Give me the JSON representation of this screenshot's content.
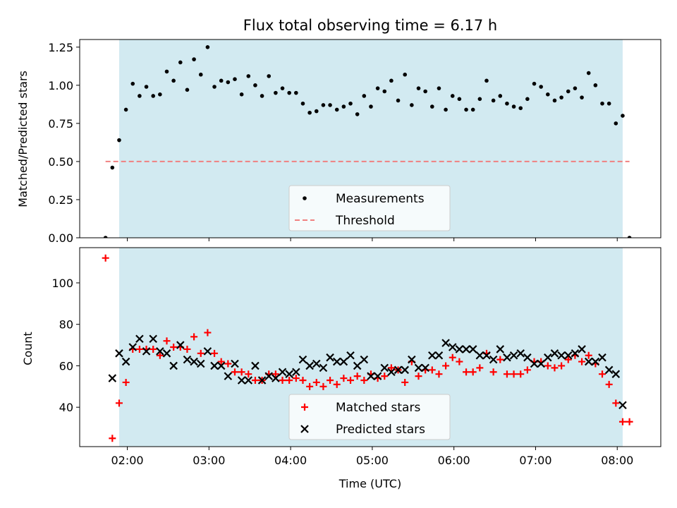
{
  "title": "Flux total observing time = 6.17 h",
  "colors": {
    "shade": "#add8e6",
    "threshold": "#f08080",
    "matched": "#ff0000",
    "predicted": "#000000",
    "measure": "#000000"
  },
  "chart_data": [
    {
      "type": "scatter",
      "ylabel": "Matched/Predicted stars",
      "xlabel": "",
      "xlim": [
        "01:25",
        "08:32"
      ],
      "ylim": [
        0,
        1.3
      ],
      "yticks": [
        "0.00",
        "0.25",
        "0.50",
        "0.75",
        "1.00",
        "1.25"
      ],
      "shaded_x_range": [
        "01:54",
        "08:04"
      ],
      "threshold": {
        "name": "Threshold",
        "y": 0.5,
        "x": [
          "01:44",
          "08:09"
        ]
      },
      "legend": {
        "position": "lower-center",
        "entries": [
          "Measurements",
          "Threshold"
        ]
      },
      "series": [
        {
          "name": "Measurements",
          "x": [
            "01:44",
            "01:49",
            "01:54",
            "01:59",
            "02:04",
            "02:09",
            "02:14",
            "02:19",
            "02:24",
            "02:29",
            "02:34",
            "02:39",
            "02:44",
            "02:49",
            "02:54",
            "02:59",
            "03:04",
            "03:09",
            "03:14",
            "03:19",
            "03:24",
            "03:29",
            "03:34",
            "03:39",
            "03:44",
            "03:49",
            "03:54",
            "03:59",
            "04:04",
            "04:09",
            "04:14",
            "04:19",
            "04:24",
            "04:29",
            "04:34",
            "04:39",
            "04:44",
            "04:49",
            "04:54",
            "04:59",
            "05:04",
            "05:09",
            "05:14",
            "05:19",
            "05:24",
            "05:29",
            "05:34",
            "05:39",
            "05:44",
            "05:49",
            "05:54",
            "05:59",
            "06:04",
            "06:09",
            "06:14",
            "06:19",
            "06:24",
            "06:29",
            "06:34",
            "06:39",
            "06:44",
            "06:49",
            "06:54",
            "06:59",
            "07:04",
            "07:09",
            "07:14",
            "07:19",
            "07:24",
            "07:29",
            "07:34",
            "07:39",
            "07:44",
            "07:49",
            "07:54",
            "07:59",
            "08:04",
            "08:09"
          ],
          "y": [
            0.0,
            0.46,
            0.64,
            0.84,
            1.01,
            0.93,
            0.99,
            0.93,
            0.94,
            1.09,
            1.03,
            1.15,
            0.97,
            1.17,
            1.07,
            1.25,
            0.99,
            1.03,
            1.02,
            1.04,
            0.94,
            1.06,
            1.0,
            0.93,
            1.06,
            0.95,
            0.98,
            0.95,
            0.95,
            0.88,
            0.82,
            0.83,
            0.87,
            0.87,
            0.84,
            0.86,
            0.88,
            0.81,
            0.93,
            0.86,
            0.98,
            0.96,
            1.03,
            0.9,
            1.07,
            0.87,
            0.98,
            0.96,
            0.86,
            0.98,
            0.84,
            0.93,
            0.91,
            0.84,
            0.84,
            0.91,
            1.03,
            0.9,
            0.93,
            0.88,
            0.86,
            0.85,
            0.91,
            1.01,
            0.99,
            0.94,
            0.9,
            0.92,
            0.96,
            0.98,
            0.92,
            1.08,
            1.0,
            0.88,
            0.88,
            0.75,
            0.8,
            0.0
          ]
        }
      ]
    },
    {
      "type": "scatter",
      "ylabel": "Count",
      "xlabel": "Time (UTC)",
      "xlim": [
        "01:25",
        "08:32"
      ],
      "ylim": [
        21,
        117
      ],
      "yticks": [
        "40",
        "60",
        "80",
        "100"
      ],
      "xticks": [
        "02:00",
        "03:00",
        "04:00",
        "05:00",
        "06:00",
        "07:00",
        "08:00"
      ],
      "shaded_x_range": [
        "01:54",
        "08:04"
      ],
      "legend": {
        "position": "lower-center",
        "entries": [
          "Matched stars",
          "Predicted stars"
        ]
      },
      "series": [
        {
          "name": "Matched stars",
          "x": [
            "01:44",
            "01:49",
            "01:54",
            "01:59",
            "02:04",
            "02:09",
            "02:14",
            "02:19",
            "02:24",
            "02:29",
            "02:34",
            "02:39",
            "02:44",
            "02:49",
            "02:54",
            "02:59",
            "03:04",
            "03:09",
            "03:14",
            "03:19",
            "03:24",
            "03:29",
            "03:34",
            "03:39",
            "03:44",
            "03:49",
            "03:54",
            "03:59",
            "04:04",
            "04:09",
            "04:14",
            "04:19",
            "04:24",
            "04:29",
            "04:34",
            "04:39",
            "04:44",
            "04:49",
            "04:54",
            "04:59",
            "05:04",
            "05:09",
            "05:14",
            "05:19",
            "05:24",
            "05:29",
            "05:34",
            "05:39",
            "05:44",
            "05:49",
            "05:54",
            "05:59",
            "06:04",
            "06:09",
            "06:14",
            "06:19",
            "06:24",
            "06:29",
            "06:34",
            "06:39",
            "06:44",
            "06:49",
            "06:54",
            "06:59",
            "07:04",
            "07:09",
            "07:14",
            "07:19",
            "07:24",
            "07:29",
            "07:34",
            "07:39",
            "07:44",
            "07:49",
            "07:54",
            "07:59",
            "08:04",
            "08:09"
          ],
          "y": [
            112,
            25,
            42,
            52,
            68,
            68,
            68,
            68,
            65,
            72,
            69,
            69,
            68,
            74,
            66,
            76,
            66,
            62,
            61,
            57,
            57,
            56,
            53,
            53,
            56,
            56,
            53,
            53,
            54,
            53,
            50,
            52,
            50,
            53,
            51,
            54,
            53,
            55,
            53,
            56,
            54,
            55,
            59,
            58,
            52,
            62,
            55,
            58,
            58,
            56,
            60,
            64,
            62,
            57,
            57,
            59,
            66,
            57,
            63,
            56,
            56,
            56,
            58,
            62,
            62,
            60,
            59,
            60,
            63,
            65,
            62,
            65,
            61,
            56,
            51,
            42,
            33,
            33
          ]
        },
        {
          "name": "Predicted stars",
          "x": [
            "01:49",
            "01:54",
            "01:59",
            "02:04",
            "02:09",
            "02:14",
            "02:19",
            "02:24",
            "02:29",
            "02:34",
            "02:39",
            "02:44",
            "02:49",
            "02:54",
            "02:59",
            "03:04",
            "03:09",
            "03:14",
            "03:19",
            "03:24",
            "03:29",
            "03:34",
            "03:39",
            "03:44",
            "03:49",
            "03:54",
            "03:59",
            "04:04",
            "04:09",
            "04:14",
            "04:19",
            "04:24",
            "04:29",
            "04:34",
            "04:39",
            "04:44",
            "04:49",
            "04:54",
            "04:59",
            "05:04",
            "05:09",
            "05:14",
            "05:19",
            "05:24",
            "05:29",
            "05:34",
            "05:39",
            "05:44",
            "05:49",
            "05:54",
            "05:59",
            "06:04",
            "06:09",
            "06:14",
            "06:19",
            "06:24",
            "06:29",
            "06:34",
            "06:39",
            "06:44",
            "06:49",
            "06:54",
            "06:59",
            "07:04",
            "07:09",
            "07:14",
            "07:19",
            "07:24",
            "07:29",
            "07:34",
            "07:39",
            "07:44",
            "07:49",
            "07:54",
            "07:59",
            "08:04"
          ],
          "y": [
            54,
            66,
            62,
            69,
            73,
            67,
            73,
            67,
            66,
            60,
            70,
            63,
            62,
            61,
            67,
            60,
            60,
            55,
            61,
            53,
            53,
            60,
            53,
            55,
            54,
            57,
            56,
            57,
            63,
            60,
            61,
            59,
            64,
            62,
            62,
            65,
            60,
            63,
            55,
            55,
            59,
            57,
            58,
            58,
            63,
            59,
            59,
            65,
            65,
            71,
            69,
            68,
            68,
            68,
            65,
            65,
            63,
            68,
            64,
            65,
            66,
            64,
            61,
            61,
            64,
            66,
            65,
            65,
            66,
            68,
            62,
            62,
            64,
            58,
            56,
            41
          ]
        }
      ]
    }
  ]
}
